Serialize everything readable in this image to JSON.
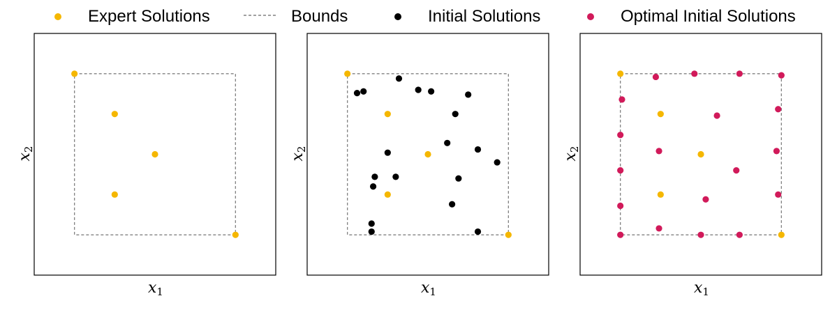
{
  "legend": {
    "expert": "Expert Solutions",
    "bounds": "Bounds",
    "initial": "Initial Solutions",
    "optimal": "Optimal Initial Solutions"
  },
  "colors": {
    "expert": "#f5b700",
    "initial": "#000000",
    "optimal": "#d11a5a",
    "bounds": "#808080",
    "frame": "#000000"
  },
  "chart_data": [
    {
      "type": "scatter",
      "xlabel": "x",
      "xlabel_sub": "1",
      "ylabel": "x",
      "ylabel_sub": "2",
      "xlim": [
        -0.25,
        1.25
      ],
      "ylim": [
        -0.25,
        1.25
      ],
      "bounds": {
        "x": [
          0,
          1
        ],
        "y": [
          0,
          1
        ]
      },
      "series": [
        {
          "name": "Expert Solutions",
          "key": "expert",
          "x": [
            0,
            0.25,
            0.5,
            0.25,
            1
          ],
          "y": [
            1,
            0.75,
            0.5,
            0.25,
            0
          ]
        }
      ]
    },
    {
      "type": "scatter",
      "xlabel": "x",
      "xlabel_sub": "1",
      "ylabel": "x",
      "ylabel_sub": "2",
      "xlim": [
        -0.25,
        1.25
      ],
      "ylim": [
        -0.25,
        1.25
      ],
      "bounds": {
        "x": [
          0,
          1
        ],
        "y": [
          0,
          1
        ]
      },
      "series": [
        {
          "name": "Initial Solutions",
          "key": "initial",
          "x": [
            0.06,
            0.1,
            0.32,
            0.44,
            0.52,
            0.75,
            0.67,
            0.62,
            0.81,
            0.25,
            0.93,
            0.17,
            0.3,
            0.16,
            0.69,
            0.65,
            0.15,
            0.15,
            0.81
          ],
          "y": [
            0.88,
            0.89,
            0.97,
            0.9,
            0.89,
            0.87,
            0.75,
            0.57,
            0.53,
            0.51,
            0.45,
            0.36,
            0.36,
            0.3,
            0.35,
            0.19,
            0.07,
            0.02,
            0.02
          ]
        },
        {
          "name": "Expert Solutions",
          "key": "expert",
          "x": [
            0,
            0.25,
            0.5,
            0.25,
            1
          ],
          "y": [
            1,
            0.75,
            0.5,
            0.25,
            0
          ]
        }
      ]
    },
    {
      "type": "scatter",
      "xlabel": "x",
      "xlabel_sub": "1",
      "ylabel": "x",
      "ylabel_sub": "2",
      "xlim": [
        -0.25,
        1.25
      ],
      "ylim": [
        -0.25,
        1.25
      ],
      "bounds": {
        "x": [
          0,
          1
        ],
        "y": [
          0,
          1
        ]
      },
      "series": [
        {
          "name": "Optimal Initial Solutions",
          "key": "optimal",
          "x": [
            0.22,
            0.46,
            0.74,
            1,
            0.01,
            0.98,
            0.6,
            0,
            0.24,
            0.97,
            0,
            0.72,
            0.98,
            0.53,
            0,
            0.24,
            0,
            0.5,
            0.74
          ],
          "y": [
            0.98,
            1,
            1,
            0.99,
            0.84,
            0.78,
            0.74,
            0.62,
            0.52,
            0.52,
            0.4,
            0.4,
            0.25,
            0.22,
            0.18,
            0.04,
            0,
            0,
            0
          ]
        },
        {
          "name": "Expert Solutions",
          "key": "expert",
          "x": [
            0,
            0.25,
            0.5,
            0.25,
            1
          ],
          "y": [
            1,
            0.75,
            0.5,
            0.25,
            0
          ]
        }
      ]
    }
  ]
}
